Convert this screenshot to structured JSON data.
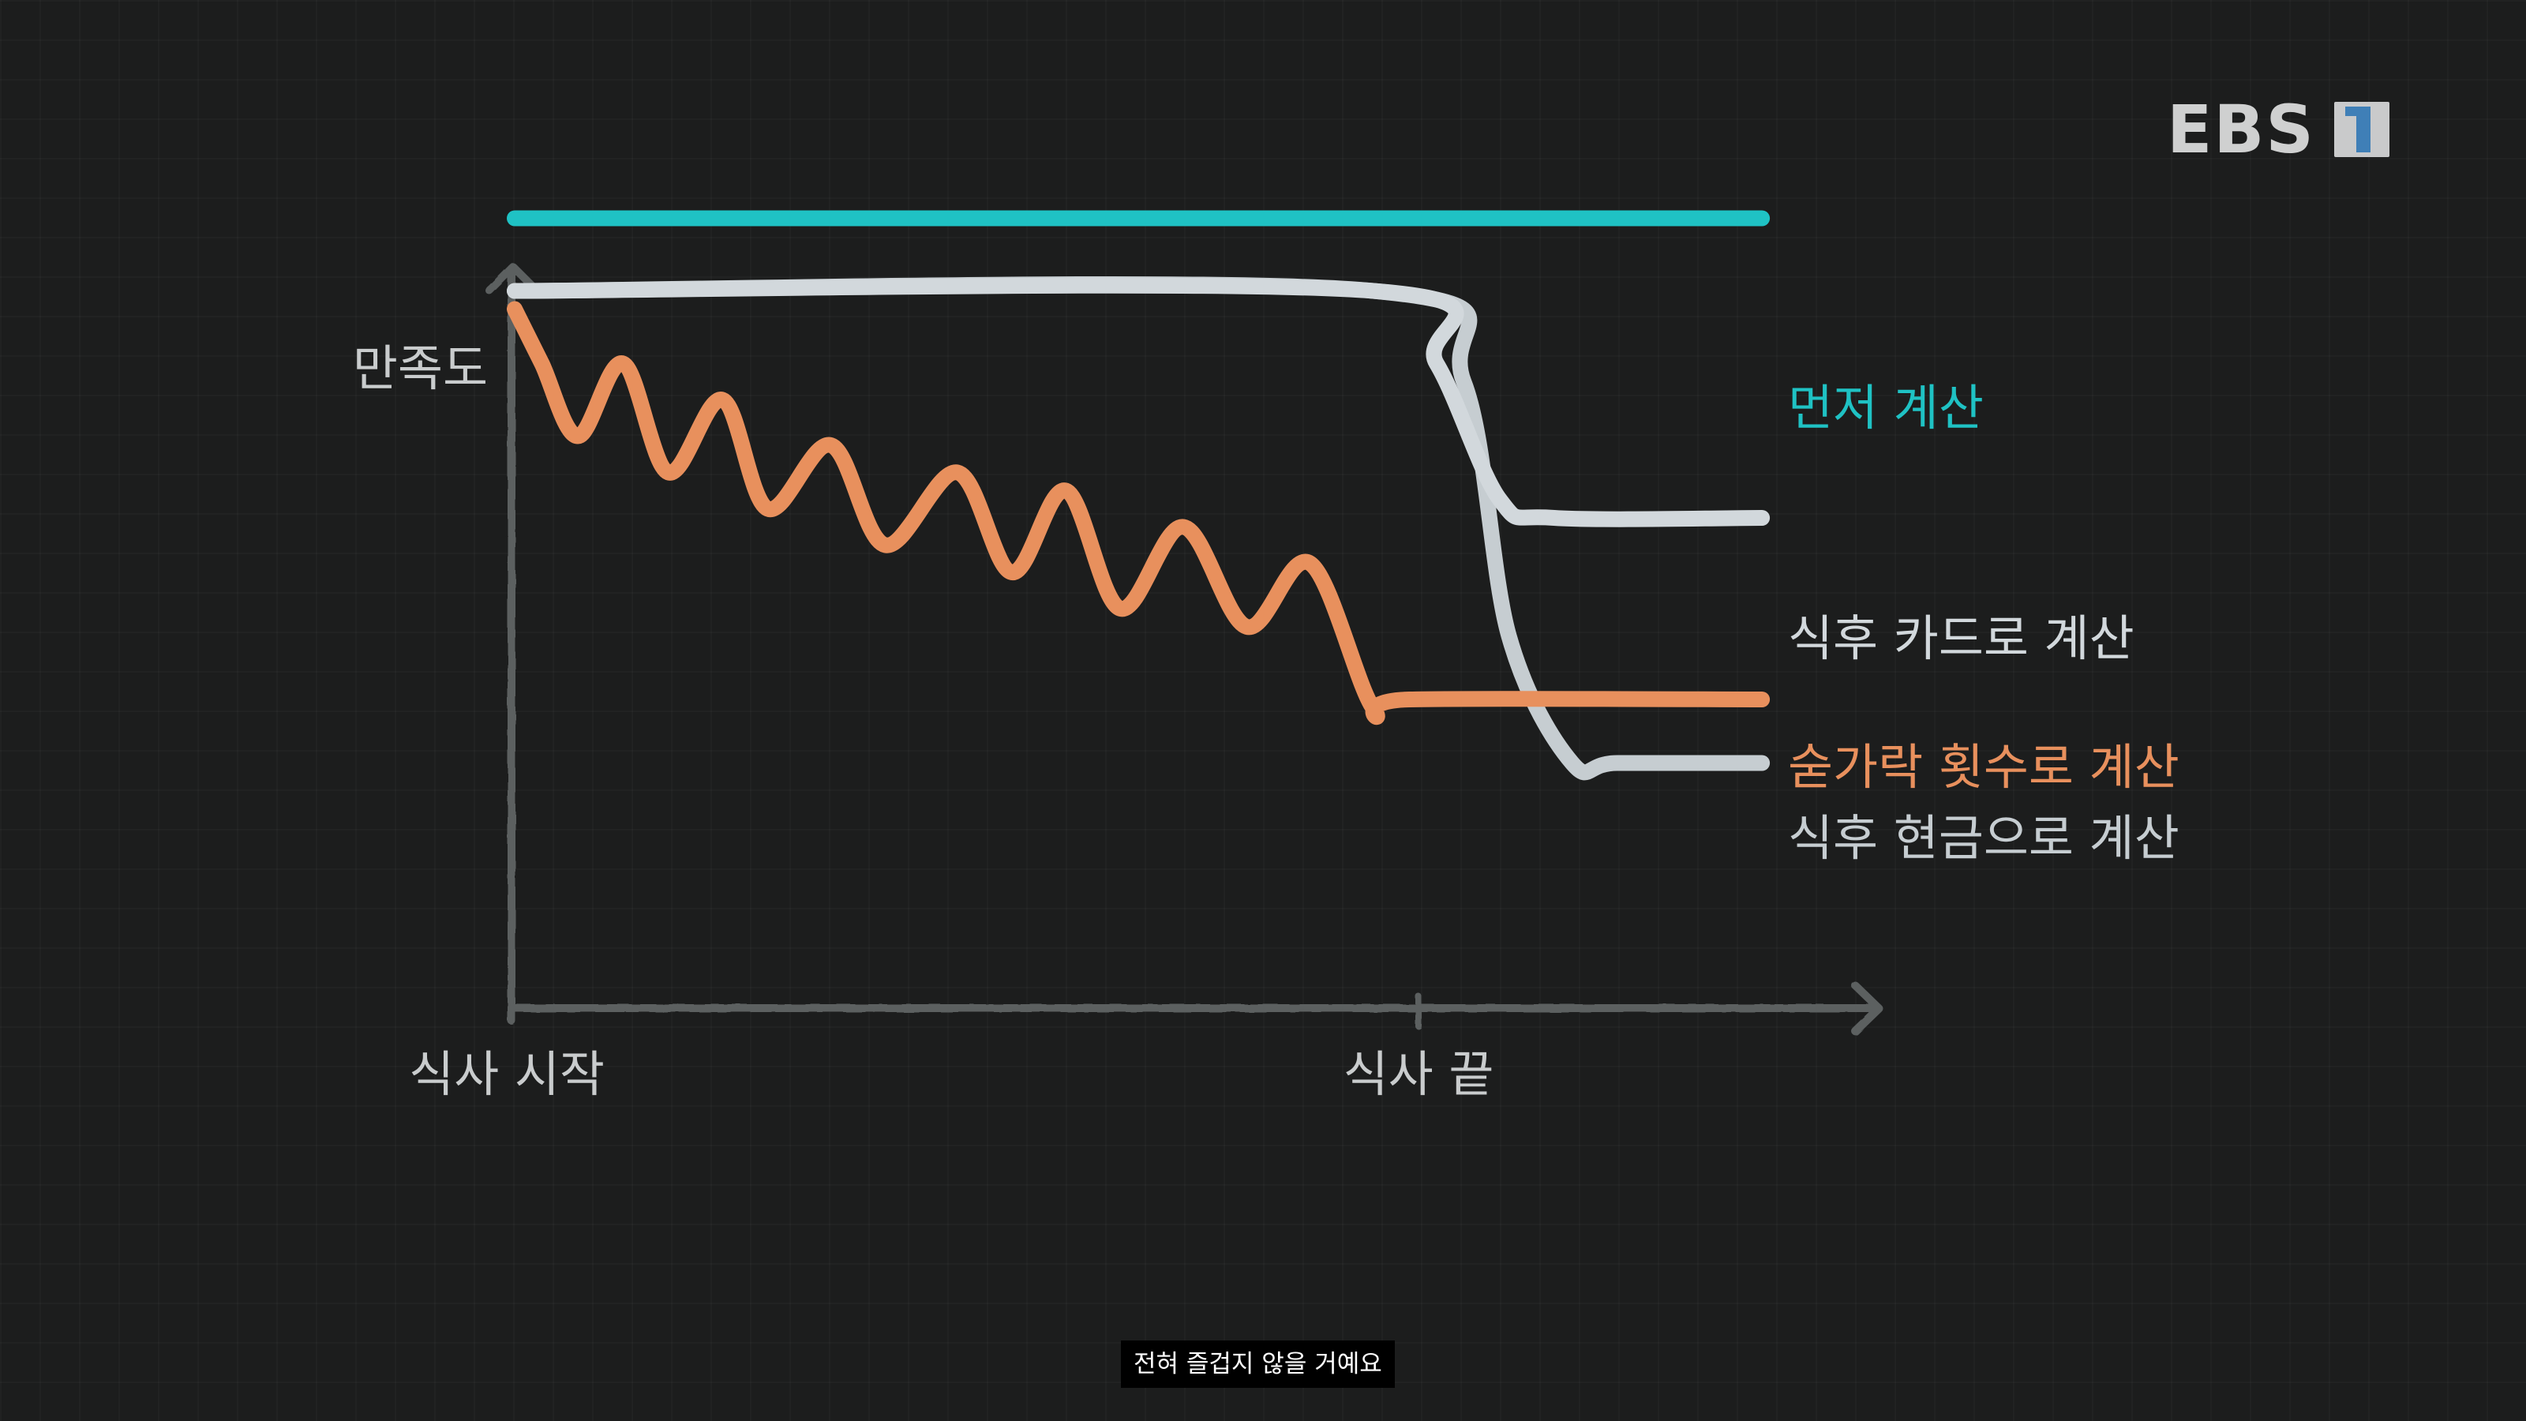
{
  "chart_data": {
    "type": "line",
    "ylabel": "만족도",
    "x_ticks": [
      {
        "x": 0,
        "label": "식사 시작"
      },
      {
        "x": 1,
        "label": "식사 끝"
      }
    ],
    "xlim": [
      0,
      1.38
    ],
    "ylim": [
      0,
      1
    ],
    "grid": false,
    "legend": "inline-right",
    "series": [
      {
        "name": "먼저 계산",
        "color": "#1fc2c4",
        "points": [
          [
            0,
            0.87
          ],
          [
            1.38,
            0.87
          ]
        ]
      },
      {
        "name": "식후 카드로 계산",
        "color": "#d2d8dc",
        "points": [
          [
            0,
            0.79
          ],
          [
            0.95,
            0.79
          ],
          [
            1.02,
            0.71
          ],
          [
            1.09,
            0.56
          ],
          [
            1.15,
            0.54
          ],
          [
            1.38,
            0.54
          ]
        ]
      },
      {
        "name": "숟가락 횟수로 계산",
        "color": "#e8905d",
        "points": [
          [
            0,
            0.77
          ],
          [
            0.03,
            0.71
          ],
          [
            0.07,
            0.63
          ],
          [
            0.12,
            0.71
          ],
          [
            0.17,
            0.59
          ],
          [
            0.23,
            0.67
          ],
          [
            0.28,
            0.55
          ],
          [
            0.35,
            0.62
          ],
          [
            0.41,
            0.51
          ],
          [
            0.49,
            0.59
          ],
          [
            0.55,
            0.48
          ],
          [
            0.61,
            0.57
          ],
          [
            0.67,
            0.44
          ],
          [
            0.74,
            0.53
          ],
          [
            0.81,
            0.42
          ],
          [
            0.88,
            0.49
          ],
          [
            0.95,
            0.33
          ],
          [
            0.99,
            0.34
          ],
          [
            1.38,
            0.34
          ]
        ]
      },
      {
        "name": "식후 현금으로 계산",
        "color": "#c6cdd1",
        "points": [
          [
            0,
            0.79
          ],
          [
            0.95,
            0.79
          ],
          [
            1.05,
            0.69
          ],
          [
            1.1,
            0.41
          ],
          [
            1.17,
            0.27
          ],
          [
            1.22,
            0.27
          ],
          [
            1.38,
            0.27
          ]
        ]
      }
    ]
  },
  "logo": {
    "text": "EBS",
    "channel": "1"
  },
  "subtitle": "전혀 즐겁지 않을 거예요"
}
